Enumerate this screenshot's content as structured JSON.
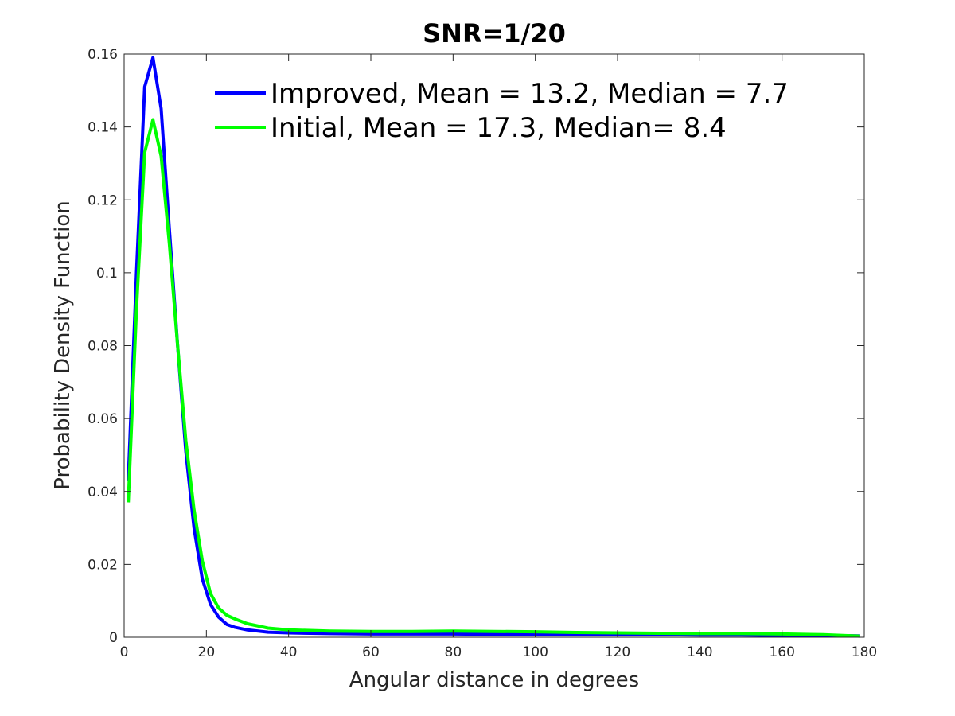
{
  "chart_data": {
    "type": "line",
    "title": "SNR=1/20",
    "xlabel": "Angular distance in degrees",
    "ylabel": "Probability Density Function",
    "xlim": [
      0,
      180
    ],
    "ylim": [
      0,
      0.16
    ],
    "xticks": [
      "0",
      "20",
      "40",
      "60",
      "80",
      "100",
      "120",
      "140",
      "160",
      "180"
    ],
    "yticks": [
      "0",
      "0.02",
      "0.04",
      "0.06",
      "0.08",
      "0.1",
      "0.12",
      "0.14",
      "0.16"
    ],
    "grid": false,
    "legend_position": "top-right",
    "series": [
      {
        "name": "Improved, Mean = 13.2, Median = 7.7",
        "color": "#0000ff",
        "x": [
          1,
          3,
          5,
          7,
          9,
          11,
          13,
          15,
          17,
          19,
          21,
          23,
          25,
          27,
          30,
          35,
          40,
          50,
          60,
          70,
          80,
          90,
          100,
          110,
          120,
          130,
          140,
          150,
          160,
          170,
          179
        ],
        "y": [
          0.043,
          0.1,
          0.151,
          0.159,
          0.145,
          0.112,
          0.08,
          0.051,
          0.03,
          0.016,
          0.009,
          0.0055,
          0.0035,
          0.0027,
          0.002,
          0.0014,
          0.0012,
          0.001,
          0.0009,
          0.0009,
          0.0009,
          0.0008,
          0.0008,
          0.0007,
          0.0007,
          0.0007,
          0.0006,
          0.0006,
          0.0005,
          0.0005,
          0.0004
        ]
      },
      {
        "name": "Initial, Mean = 17.3, Median= 8.4",
        "color": "#00ff00",
        "x": [
          1,
          3,
          5,
          7,
          9,
          11,
          13,
          15,
          17,
          19,
          21,
          23,
          25,
          27,
          30,
          35,
          40,
          50,
          60,
          70,
          80,
          90,
          100,
          110,
          120,
          130,
          140,
          150,
          160,
          170,
          179
        ],
        "y": [
          0.037,
          0.09,
          0.133,
          0.142,
          0.132,
          0.108,
          0.08,
          0.054,
          0.035,
          0.021,
          0.012,
          0.008,
          0.006,
          0.005,
          0.0037,
          0.0025,
          0.002,
          0.0017,
          0.0016,
          0.0016,
          0.0017,
          0.0016,
          0.0015,
          0.0013,
          0.0012,
          0.0011,
          0.001,
          0.001,
          0.0009,
          0.0007,
          0.0003
        ]
      }
    ]
  }
}
